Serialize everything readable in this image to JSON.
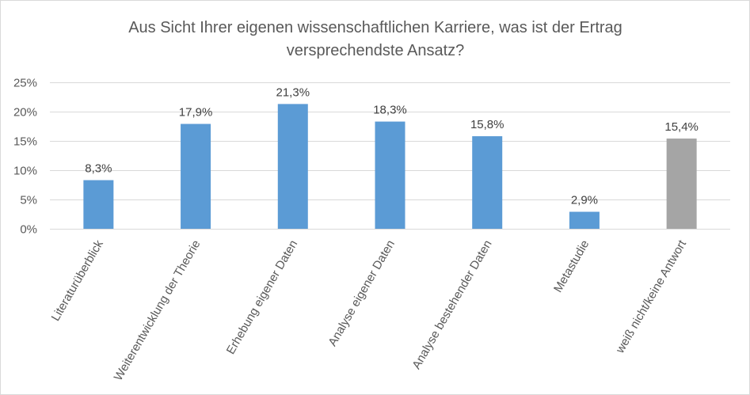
{
  "chart_data": {
    "type": "bar",
    "title_lines": [
      "Aus Sicht Ihrer eigenen wissenschaftlichen Karriere, was ist der Ertrag",
      "versprechendste Ansatz?"
    ],
    "categories": [
      "Literaturüberblick",
      "Weiterentwicklung der Theorie",
      "Erhebung eigener Daten",
      "Analyse eigener Daten",
      "Analyse bestehender Daten",
      "Metastudie",
      "weiß nicht/keine Antwort"
    ],
    "values": [
      8.3,
      17.9,
      21.3,
      18.3,
      15.8,
      2.9,
      15.4
    ],
    "data_labels": [
      "8,3%",
      "17,9%",
      "21,3%",
      "18,3%",
      "15,8%",
      "2,9%",
      "15,4%"
    ],
    "bar_colors": [
      "#5b9bd5",
      "#5b9bd5",
      "#5b9bd5",
      "#5b9bd5",
      "#5b9bd5",
      "#5b9bd5",
      "#a5a5a5"
    ],
    "ylim": [
      0,
      25
    ],
    "yticks": [
      0,
      5,
      10,
      15,
      20,
      25
    ],
    "ytick_labels": [
      "0%",
      "5%",
      "10%",
      "15%",
      "20%",
      "25%"
    ],
    "grid": true,
    "legend": "none"
  }
}
